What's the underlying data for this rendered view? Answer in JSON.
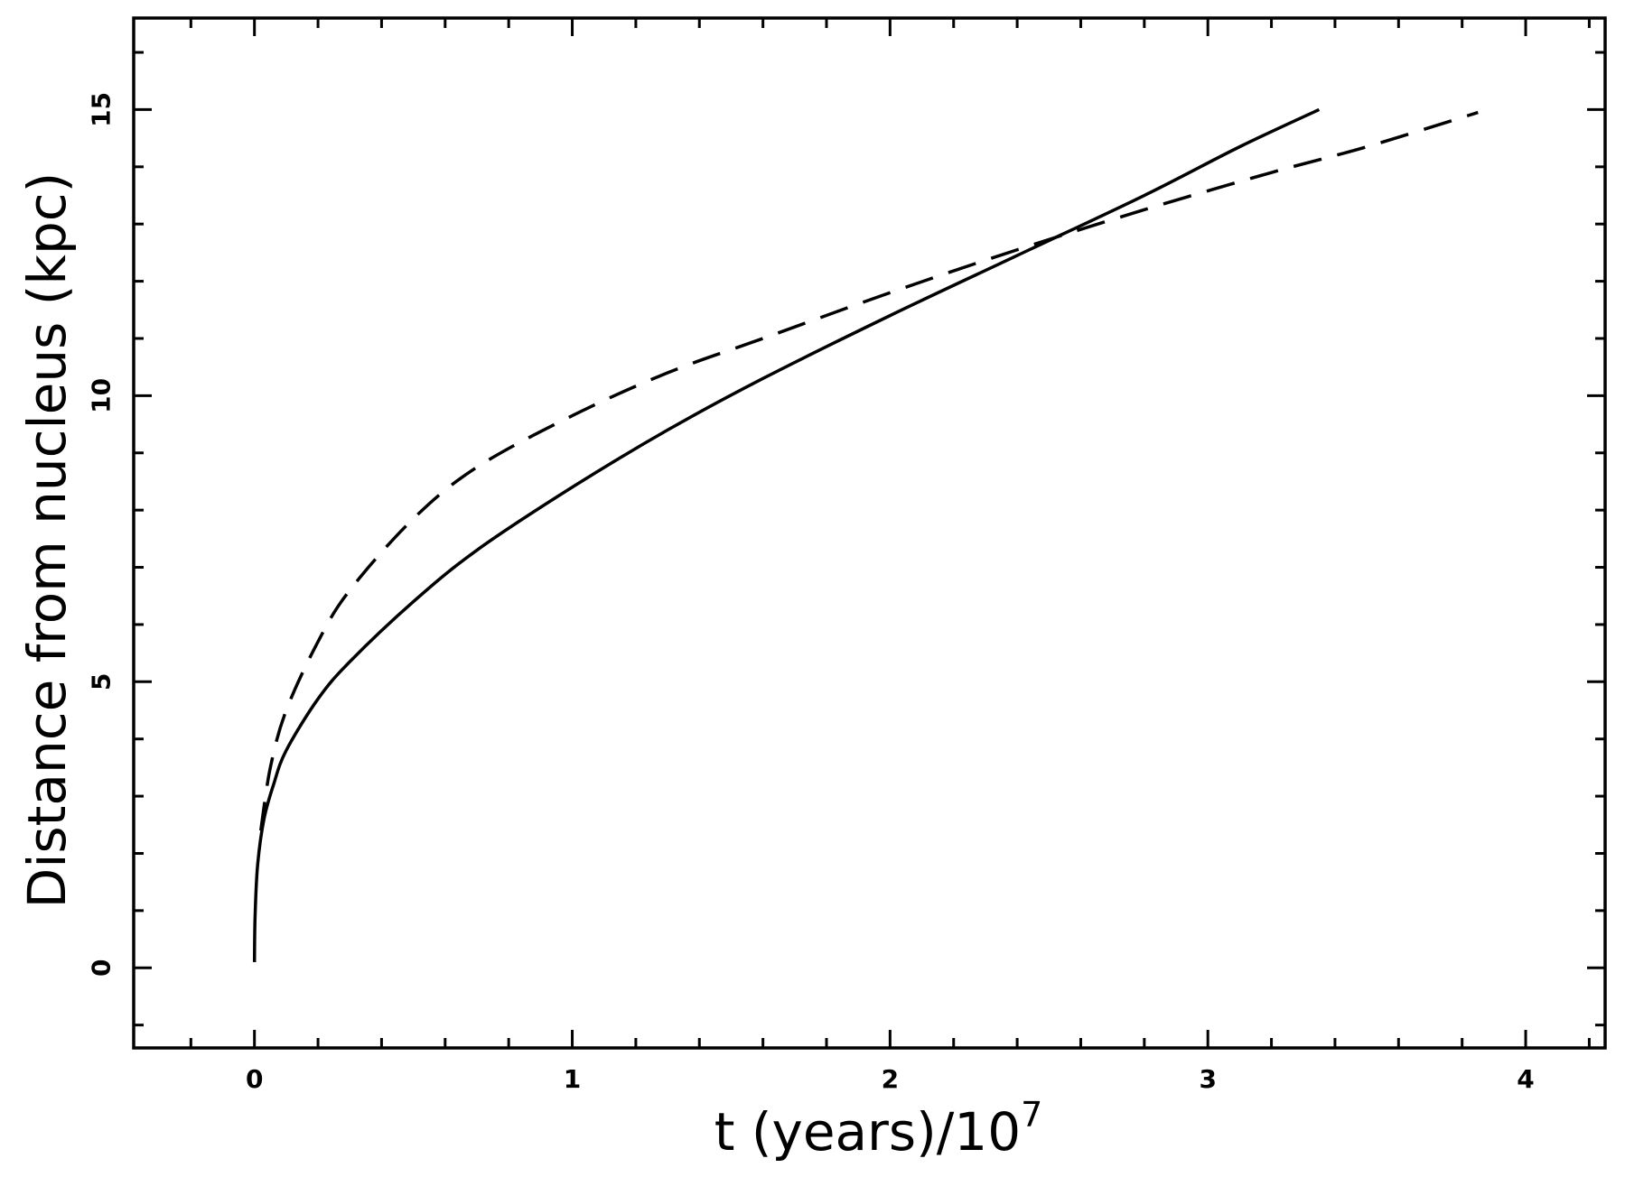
{
  "chart_data": {
    "type": "line",
    "xlabel": "t (years)/10",
    "xlabel_superscript": "7",
    "ylabel": "Distance from nucleus (kpc)",
    "xlim": [
      -0.38,
      4.25
    ],
    "ylim": [
      -1.4,
      16.6
    ],
    "x_ticks": [
      0,
      1,
      2,
      3,
      4
    ],
    "x_tick_labels": [
      "0",
      "1",
      "2",
      "3",
      "4"
    ],
    "x_minor_step": 0.2,
    "y_ticks": [
      0,
      5,
      10,
      15
    ],
    "y_tick_labels": [
      "0",
      "5",
      "10",
      "15"
    ],
    "y_minor_step": 1,
    "grid": false,
    "series": [
      {
        "style": "solid",
        "color": "#000000",
        "x": [
          0.0,
          0.002,
          0.01,
          0.03,
          0.06,
          0.1,
          0.2,
          0.3,
          0.5,
          0.7,
          1.0,
          1.3,
          1.6,
          2.0,
          2.4,
          2.8,
          3.1,
          3.35
        ],
        "y": [
          0.1,
          0.9,
          1.8,
          2.6,
          3.2,
          3.8,
          4.7,
          5.35,
          6.4,
          7.3,
          8.4,
          9.4,
          10.3,
          11.4,
          12.45,
          13.5,
          14.35,
          15.0
        ]
      },
      {
        "style": "dashed",
        "color": "#000000",
        "x": [
          0.02,
          0.05,
          0.1,
          0.2,
          0.3,
          0.5,
          0.7,
          1.0,
          1.3,
          1.6,
          2.0,
          2.4,
          2.8,
          3.2,
          3.5,
          3.85
        ],
        "y": [
          2.4,
          3.5,
          4.5,
          5.7,
          6.6,
          7.85,
          8.75,
          9.65,
          10.4,
          11.0,
          11.8,
          12.55,
          13.25,
          13.9,
          14.35,
          14.95
        ]
      }
    ]
  }
}
